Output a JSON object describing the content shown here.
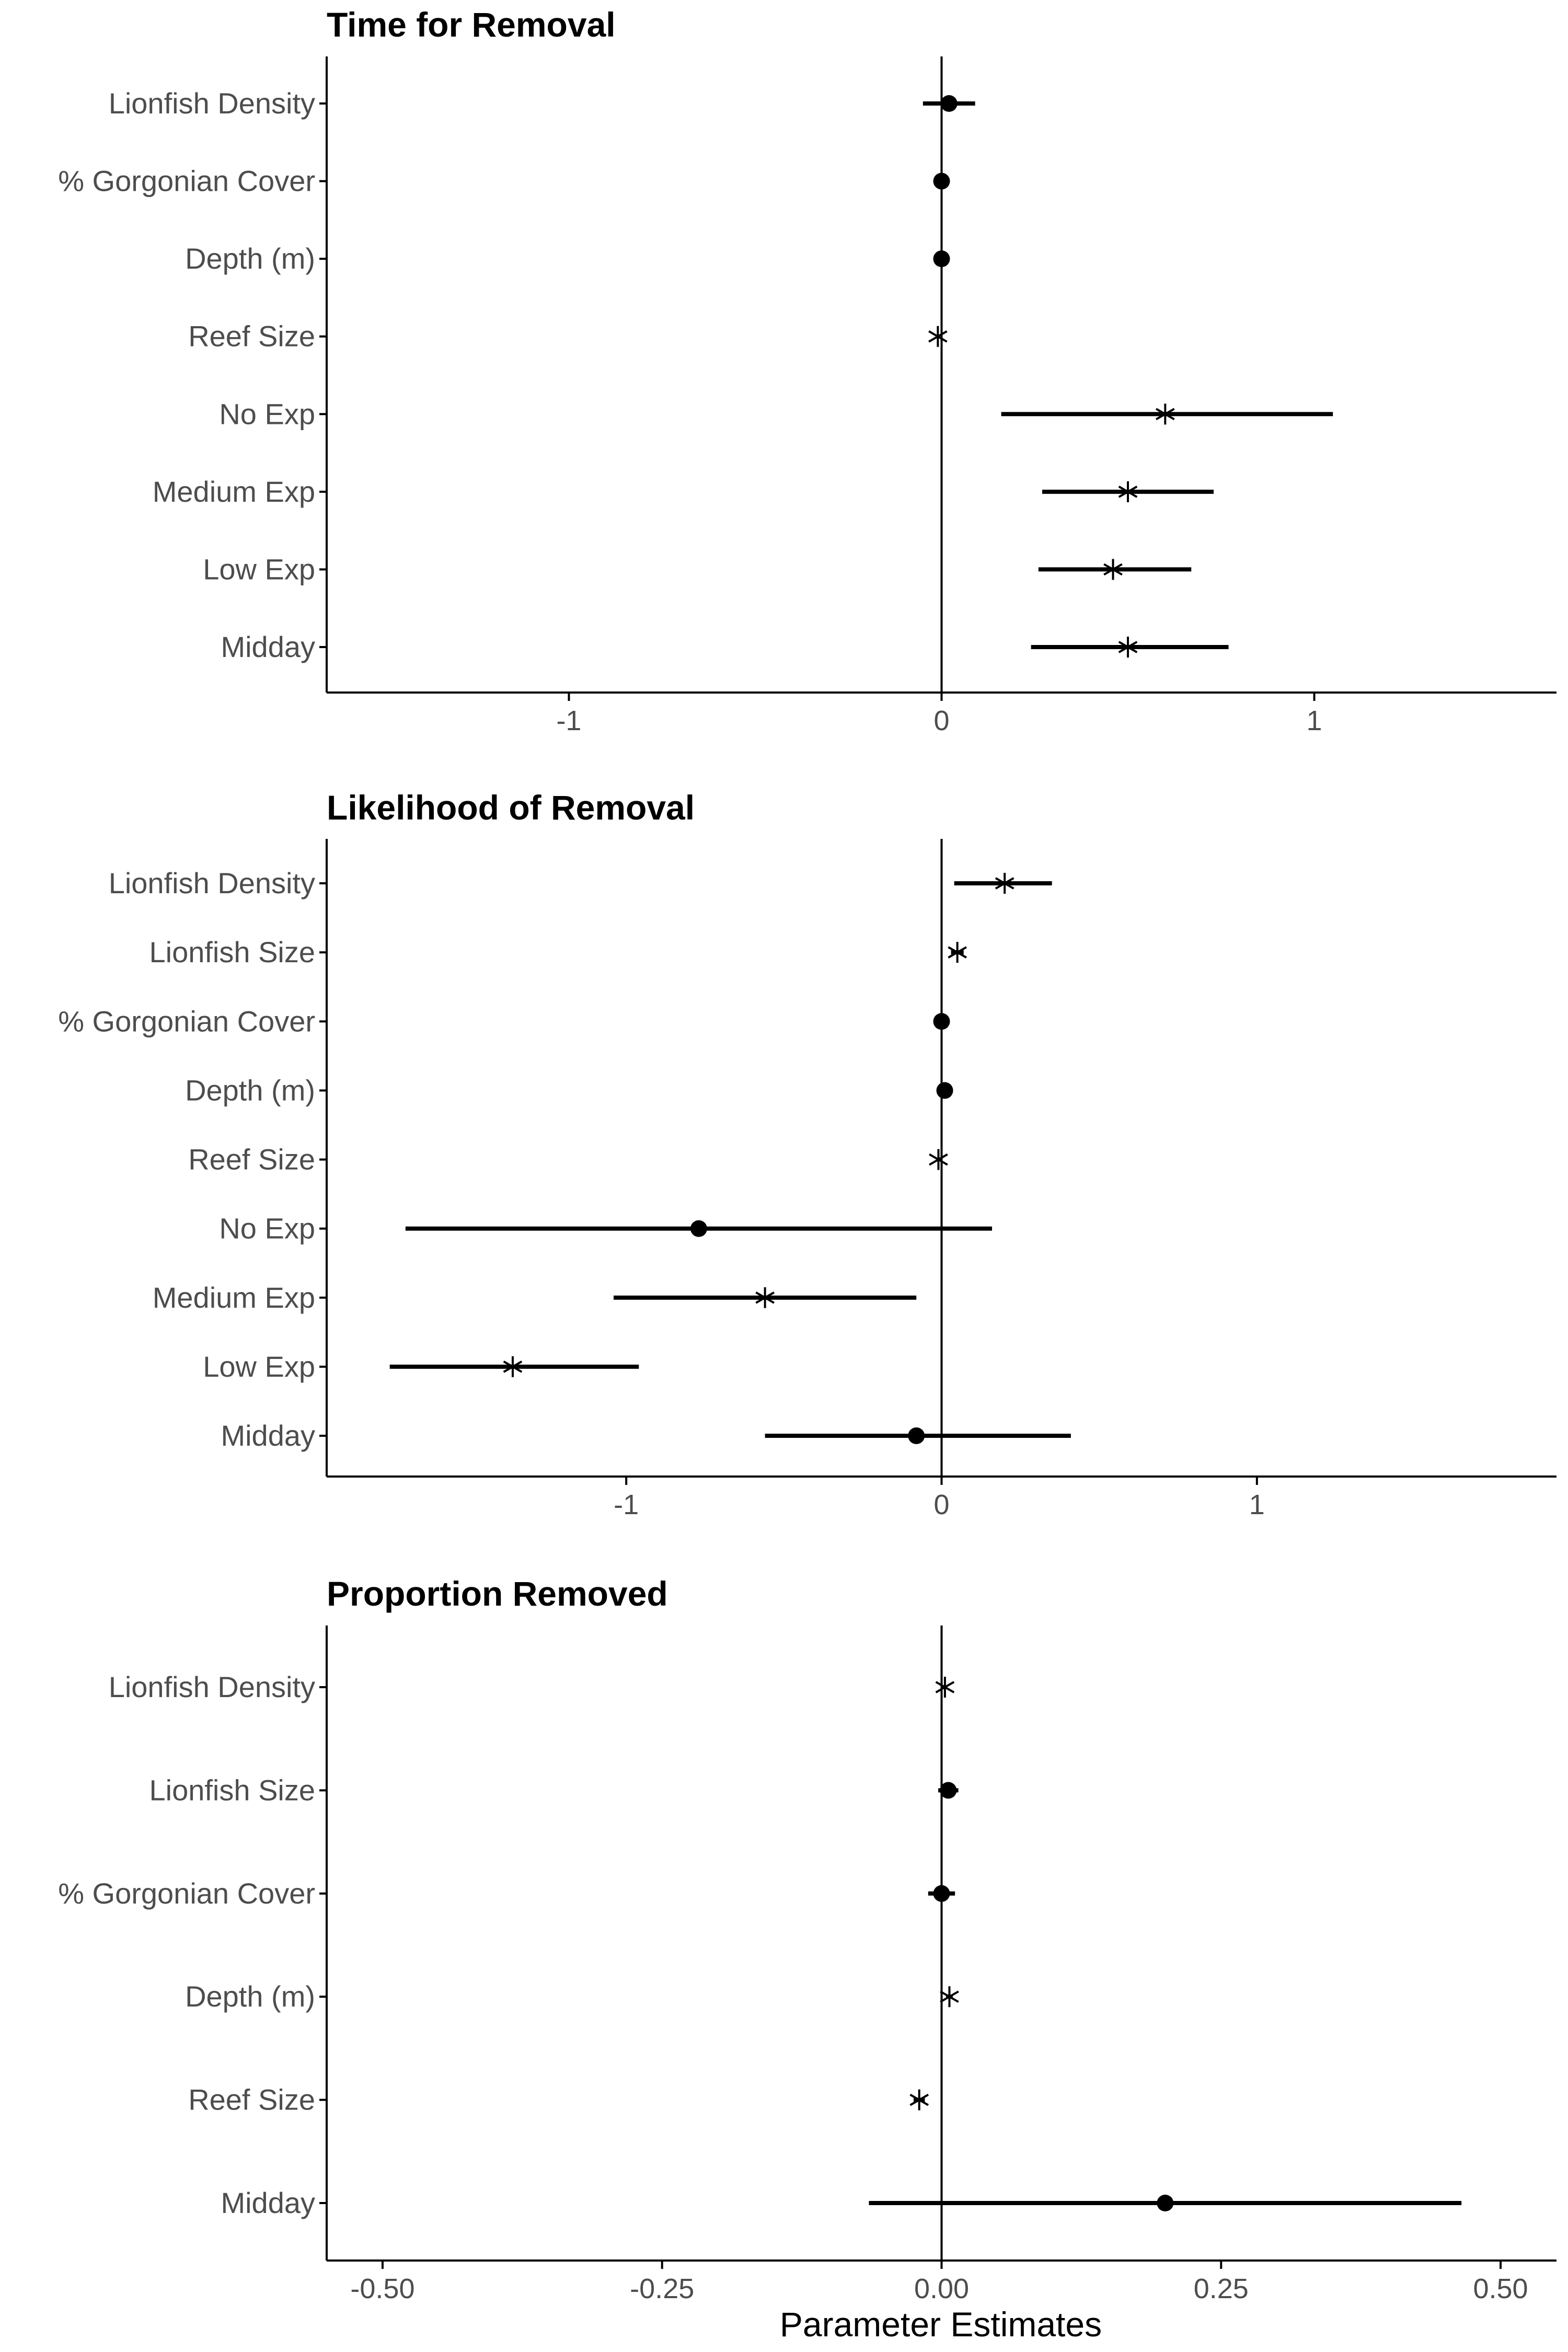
{
  "chart_data": [
    {
      "type": "forest",
      "title": "Time for Removal",
      "xlabel": "",
      "xlim": [
        -1.65,
        1.65
      ],
      "xticks": [
        -1,
        0,
        1
      ],
      "xtick_labels": [
        "-1",
        "0",
        "1"
      ],
      "categories": [
        "Lionfish Density",
        "% Gorgonian Cover",
        "Depth (m)",
        "Reef Size",
        "No Exp",
        "Medium Exp",
        "Low Exp",
        "Midday"
      ],
      "estimates": [
        0.02,
        0.0,
        0.0,
        -0.01,
        0.6,
        0.5,
        0.46,
        0.5
      ],
      "lower": [
        -0.05,
        0.0,
        0.0,
        -0.01,
        0.16,
        0.27,
        0.26,
        0.24
      ],
      "upper": [
        0.09,
        0.0,
        0.0,
        -0.01,
        1.05,
        0.73,
        0.67,
        0.77
      ],
      "markers": [
        "circle",
        "circle",
        "circle",
        "star",
        "star",
        "star",
        "star",
        "star"
      ]
    },
    {
      "type": "forest",
      "title": "Likelihood of Removal",
      "xlabel": "",
      "xlim": [
        -1.95,
        1.95
      ],
      "xticks": [
        -1,
        0,
        1
      ],
      "xtick_labels": [
        "-1",
        "0",
        "1"
      ],
      "categories": [
        "Lionfish Density",
        "Lionfish Size",
        "% Gorgonian Cover",
        "Depth (m)",
        "Reef Size",
        "No Exp",
        "Medium Exp",
        "Low Exp",
        "Midday"
      ],
      "estimates": [
        0.2,
        0.05,
        0.0,
        0.01,
        -0.01,
        -0.77,
        -0.56,
        -1.36,
        -0.08
      ],
      "lower": [
        0.04,
        0.03,
        -0.02,
        0.01,
        -0.01,
        -1.7,
        -1.04,
        -1.75,
        -0.56
      ],
      "upper": [
        0.35,
        0.07,
        0.02,
        0.01,
        -0.01,
        0.16,
        -0.08,
        -0.96,
        0.41
      ],
      "markers": [
        "star",
        "star",
        "circle",
        "circle",
        "star",
        "circle",
        "star",
        "star",
        "circle"
      ]
    },
    {
      "type": "forest",
      "title": "Proportion Removed",
      "xlabel": "Parameter Estimates",
      "xlim": [
        -0.55,
        0.55
      ],
      "xticks": [
        -0.5,
        -0.25,
        0,
        0.25,
        0.5
      ],
      "xtick_labels": [
        "-0.50",
        "-0.25",
        "0.00",
        "0.25",
        "0.50"
      ],
      "categories": [
        "Lionfish Density",
        "Lionfish Size",
        "% Gorgonian Cover",
        "Depth (m)",
        "Reef Size",
        "Midday"
      ],
      "estimates": [
        0.003,
        0.006,
        0.0,
        0.007,
        -0.02,
        0.2
      ],
      "lower": [
        0.003,
        -0.003,
        -0.012,
        0.004,
        -0.025,
        -0.065
      ],
      "upper": [
        0.003,
        0.015,
        0.012,
        0.01,
        -0.015,
        0.465
      ],
      "markers": [
        "star",
        "circle",
        "circle",
        "star",
        "star",
        "circle"
      ]
    }
  ]
}
